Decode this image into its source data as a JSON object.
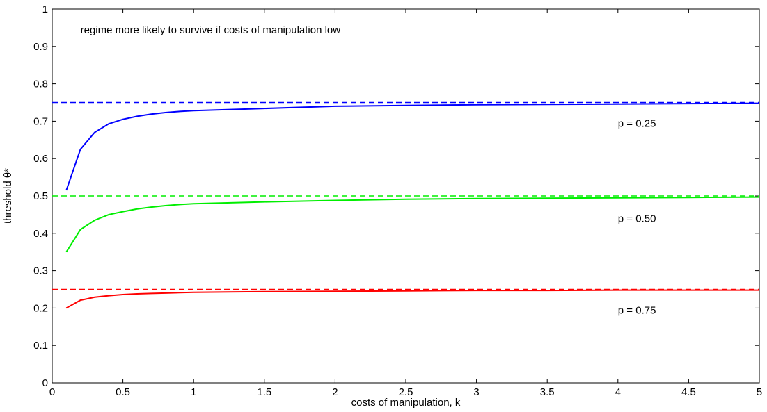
{
  "chart_data": {
    "type": "line",
    "xlabel": "costs of manipulation, k",
    "ylabel": "threshold θ*",
    "xlim": [
      0,
      5
    ],
    "ylim": [
      0,
      1
    ],
    "xticks": [
      0,
      0.5,
      1,
      1.5,
      2,
      2.5,
      3,
      3.5,
      4,
      4.5,
      5
    ],
    "xtick_labels": [
      "0",
      "0.5",
      "1",
      "1.5",
      "2",
      "2.5",
      "3",
      "3.5",
      "4",
      "4.5",
      "5"
    ],
    "yticks": [
      0,
      0.1,
      0.2,
      0.3,
      0.4,
      0.5,
      0.6,
      0.7,
      0.8,
      0.9,
      1
    ],
    "ytick_labels": [
      "0",
      "0.1",
      "0.2",
      "0.3",
      "0.4",
      "0.5",
      "0.6",
      "0.7",
      "0.8",
      "0.9",
      "1"
    ],
    "grid": false,
    "annotations": [
      {
        "text": "regime more likely to survive if costs of manipulation low",
        "x": 0.2,
        "y": 0.935
      },
      {
        "text": "p = 0.25",
        "x": 4.0,
        "y": 0.685
      },
      {
        "text": "p = 0.50",
        "x": 4.0,
        "y": 0.43
      },
      {
        "text": "p = 0.75",
        "x": 4.0,
        "y": 0.185
      }
    ],
    "series": [
      {
        "color": "#0000ff",
        "style": "solid",
        "x": [
          0.1,
          0.2,
          0.3,
          0.4,
          0.5,
          0.6,
          0.7,
          0.8,
          0.9,
          1.0,
          1.5,
          2.0,
          2.5,
          3.0,
          3.5,
          4.0,
          4.5,
          5.0
        ],
        "values": [
          0.515,
          0.625,
          0.67,
          0.693,
          0.705,
          0.713,
          0.719,
          0.723,
          0.726,
          0.728,
          0.734,
          0.74,
          0.742,
          0.744,
          0.745,
          0.746,
          0.747,
          0.748
        ]
      },
      {
        "color": "#00ee00",
        "style": "solid",
        "x": [
          0.1,
          0.2,
          0.3,
          0.4,
          0.5,
          0.6,
          0.7,
          0.8,
          0.9,
          1.0,
          1.5,
          2.0,
          2.5,
          3.0,
          3.5,
          4.0,
          4.5,
          5.0
        ],
        "values": [
          0.35,
          0.41,
          0.435,
          0.45,
          0.458,
          0.465,
          0.47,
          0.474,
          0.477,
          0.479,
          0.484,
          0.488,
          0.491,
          0.493,
          0.494,
          0.495,
          0.496,
          0.497
        ]
      },
      {
        "color": "#ff0000",
        "style": "solid",
        "x": [
          0.1,
          0.2,
          0.3,
          0.4,
          0.5,
          0.6,
          0.7,
          0.8,
          0.9,
          1.0,
          1.5,
          2.0,
          2.5,
          3.0,
          3.5,
          4.0,
          4.5,
          5.0
        ],
        "values": [
          0.2,
          0.221,
          0.229,
          0.233,
          0.236,
          0.238,
          0.239,
          0.24,
          0.241,
          0.242,
          0.244,
          0.245,
          0.246,
          0.247,
          0.247,
          0.248,
          0.248,
          0.248
        ]
      },
      {
        "color": "#0000ff",
        "style": "dashed",
        "x": [
          0,
          5
        ],
        "values": [
          0.75,
          0.75
        ]
      },
      {
        "color": "#00ee00",
        "style": "dashed",
        "x": [
          0,
          5
        ],
        "values": [
          0.5,
          0.5
        ]
      },
      {
        "color": "#ff0000",
        "style": "dashed",
        "x": [
          0,
          5
        ],
        "values": [
          0.25,
          0.25
        ]
      }
    ]
  }
}
